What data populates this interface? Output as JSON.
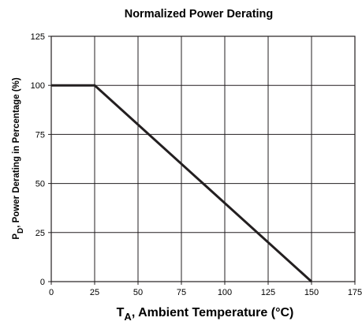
{
  "chart_data": {
    "type": "line",
    "title": "Normalized Power Derating",
    "xlabel": {
      "prefix": "T",
      "sub": "A",
      "rest": ", Ambient Temperature (°C)"
    },
    "ylabel": {
      "prefix": "P",
      "sub": "D",
      "rest": ", Power Derating in Percentage (%)"
    },
    "xlim": [
      0,
      175
    ],
    "ylim": [
      0,
      125
    ],
    "xticks": [
      "0",
      "25",
      "50",
      "75",
      "100",
      "125",
      "150",
      "175"
    ],
    "yticks": [
      "0",
      "25",
      "50",
      "75",
      "100",
      "125"
    ],
    "grid": true,
    "series": [
      {
        "x": [
          0,
          25,
          150
        ],
        "y": [
          100,
          100,
          0
        ],
        "color": "#231f20"
      }
    ]
  }
}
